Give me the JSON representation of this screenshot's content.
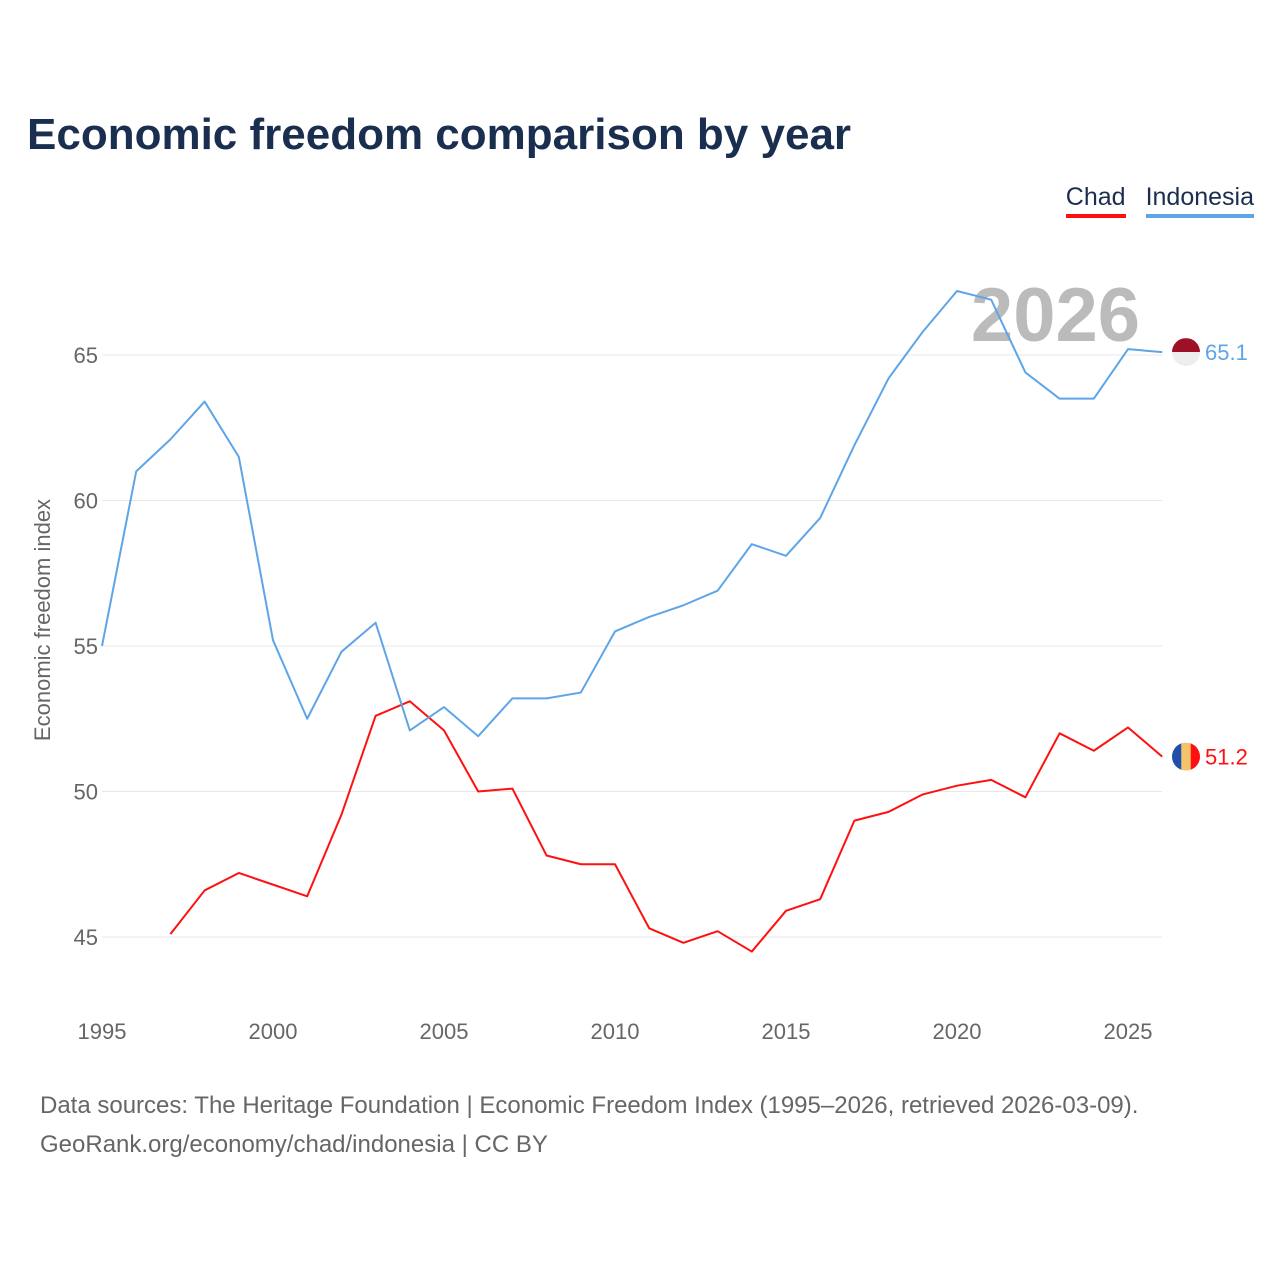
{
  "title": "Economic freedom comparison by year",
  "legend": [
    {
      "label": "Chad",
      "color": "#ff1010"
    },
    {
      "label": "Indonesia",
      "color": "#5ea5e8"
    }
  ],
  "footer": {
    "line1": "Data sources: The Heritage Foundation | Economic Freedom Index (1995–2026, retrieved 2026-03-09).",
    "line2": "GeoRank.org/economy/chad/indonesia | CC BY"
  },
  "chart_data": {
    "type": "line",
    "title": "Economic freedom comparison by year",
    "xlabel": "",
    "ylabel": "Economic freedom index",
    "watermark_year": "2026",
    "xlim": [
      1995,
      2026
    ],
    "ylim": [
      43.5,
      68
    ],
    "xticks": [
      "1995",
      "2000",
      "2005",
      "2010",
      "2015",
      "2020",
      "2025"
    ],
    "yticks": [
      "45",
      "50",
      "55",
      "60",
      "65"
    ],
    "grid": true,
    "legend_position": "top-right",
    "series": [
      {
        "name": "Chad",
        "color": "#ff1010",
        "end_label": "51.2",
        "x": [
          1997,
          1998,
          1999,
          2000,
          2001,
          2002,
          2003,
          2004,
          2005,
          2006,
          2007,
          2008,
          2009,
          2010,
          2011,
          2012,
          2013,
          2014,
          2015,
          2016,
          2017,
          2018,
          2019,
          2020,
          2021,
          2022,
          2023,
          2024,
          2025,
          2026
        ],
        "y": [
          45.1,
          46.6,
          47.2,
          46.8,
          46.4,
          49.2,
          52.6,
          53.1,
          52.1,
          50.0,
          50.1,
          47.8,
          47.5,
          47.5,
          45.3,
          44.8,
          45.2,
          44.5,
          45.9,
          46.3,
          49.0,
          49.3,
          49.9,
          50.2,
          50.4,
          49.8,
          52.0,
          51.4,
          52.2,
          51.2
        ]
      },
      {
        "name": "Indonesia",
        "color": "#5ea5e8",
        "end_label": "65.1",
        "x": [
          1995,
          1996,
          1997,
          1998,
          1999,
          2000,
          2001,
          2002,
          2003,
          2004,
          2005,
          2006,
          2007,
          2008,
          2009,
          2010,
          2011,
          2012,
          2013,
          2014,
          2015,
          2016,
          2017,
          2018,
          2019,
          2020,
          2021,
          2022,
          2023,
          2024,
          2025,
          2026
        ],
        "y": [
          55.0,
          61.0,
          62.1,
          63.4,
          61.5,
          55.2,
          52.5,
          54.8,
          55.8,
          52.1,
          52.9,
          51.9,
          53.2,
          53.2,
          53.4,
          55.5,
          56.0,
          56.4,
          56.9,
          58.5,
          58.1,
          59.4,
          61.9,
          64.2,
          65.8,
          67.2,
          66.9,
          64.4,
          63.5,
          63.5,
          65.2,
          65.1
        ]
      }
    ]
  }
}
